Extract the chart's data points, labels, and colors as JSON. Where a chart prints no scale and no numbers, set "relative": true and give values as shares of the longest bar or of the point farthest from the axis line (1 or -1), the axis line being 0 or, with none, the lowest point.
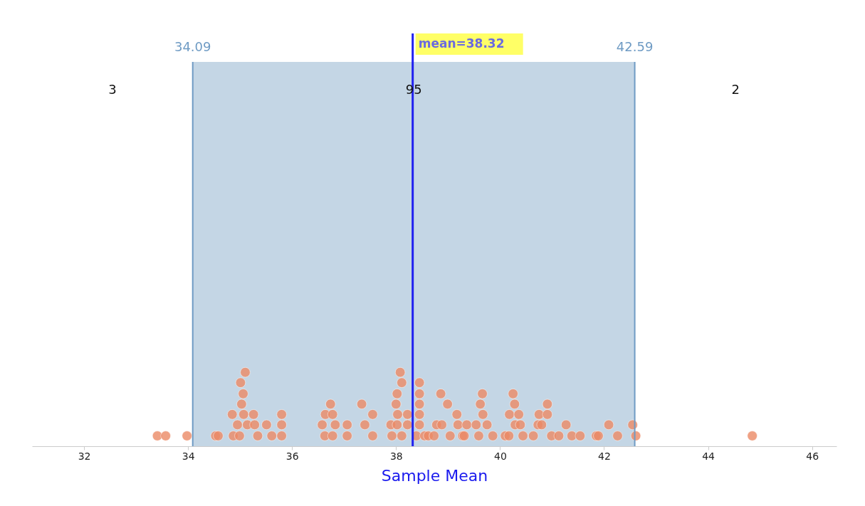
{
  "chart_data": {
    "type": "scatter",
    "xlabel": "Sample Mean",
    "xlim": [
      31,
      46.47
    ],
    "xticks": [
      32,
      34,
      36,
      38,
      40,
      42,
      44,
      46
    ],
    "relative": true,
    "tick_labels": "x",
    "marker": "circle",
    "series": [
      {
        "color": "#ec8a66",
        "x": [
          33.41,
          33.57,
          33.98,
          34.53,
          34.58,
          34.85,
          34.87,
          34.95,
          34.99,
          35.01,
          35.03,
          35.06,
          35.07,
          35.1,
          35.14,
          35.26,
          35.28,
          35.34,
          35.51,
          35.61,
          35.8,
          35.8,
          35.8,
          36.58,
          36.63,
          36.64,
          36.74,
          36.78,
          36.78,
          36.83,
          37.06,
          37.06,
          37.34,
          37.4,
          37.55,
          37.55,
          37.9,
          37.92,
          38.0,
          38.02,
          38.03,
          38.02,
          38.08,
          38.11,
          38.11,
          38.22,
          38.22,
          38.39,
          38.45,
          38.45,
          38.45,
          38.45,
          38.45,
          38.55,
          38.62,
          38.73,
          38.78,
          38.88,
          38.86,
          38.99,
          39.04,
          39.17,
          39.19,
          39.28,
          39.31,
          39.36,
          39.54,
          39.59,
          39.62,
          39.66,
          39.67,
          39.75,
          39.86,
          40.1,
          40.17,
          40.18,
          40.25,
          40.28,
          40.29,
          40.36,
          40.39,
          40.44,
          40.64,
          40.75,
          40.73,
          40.8,
          40.91,
          40.91,
          40.99,
          41.13,
          41.27,
          41.38,
          41.54,
          41.85,
          41.89,
          42.09,
          42.26,
          42.55,
          42.61,
          44.85
        ],
        "values": [
          0.14,
          0.14,
          0.14,
          0.14,
          0.14,
          0.43,
          0.14,
          0.29,
          0.14,
          0.86,
          0.57,
          0.71,
          0.43,
          1,
          0.29,
          0.43,
          0.29,
          0.14,
          0.29,
          0.14,
          0.14,
          0.29,
          0.43,
          0.29,
          0.14,
          0.43,
          0.57,
          0.43,
          0.14,
          0.29,
          0.29,
          0.14,
          0.57,
          0.29,
          0.43,
          0.14,
          0.29,
          0.14,
          0.57,
          0.71,
          0.43,
          0.29,
          1,
          0.86,
          0.14,
          0.43,
          0.29,
          0.14,
          0.29,
          0.43,
          0.57,
          0.71,
          0.86,
          0.14,
          0.14,
          0.14,
          0.29,
          0.29,
          0.71,
          0.57,
          0.14,
          0.43,
          0.29,
          0.14,
          0.14,
          0.29,
          0.29,
          0.14,
          0.57,
          0.71,
          0.43,
          0.29,
          0.14,
          0.14,
          0.14,
          0.43,
          0.71,
          0.57,
          0.29,
          0.43,
          0.29,
          0.14,
          0.14,
          0.43,
          0.29,
          0.29,
          0.43,
          0.57,
          0.14,
          0.14,
          0.29,
          0.14,
          0.14,
          0.14,
          0.14,
          0.29,
          0.14,
          0.29,
          0.14,
          0.14
        ]
      }
    ],
    "bands": [
      {
        "axis": "x",
        "from": 34.09,
        "to": 42.59,
        "color": "#c4d6e5"
      }
    ],
    "ref_lines": [
      {
        "axis": "x",
        "value": 34.09,
        "label": "34.09",
        "color": "#6f9bc4"
      },
      {
        "axis": "x",
        "value": 42.59,
        "label": "42.59",
        "color": "#6f9bc4"
      },
      {
        "axis": "x",
        "value": 38.32,
        "label": "mean=38.32",
        "color": "#2020f0"
      }
    ],
    "annotations": [
      "3",
      "95",
      "2"
    ]
  }
}
